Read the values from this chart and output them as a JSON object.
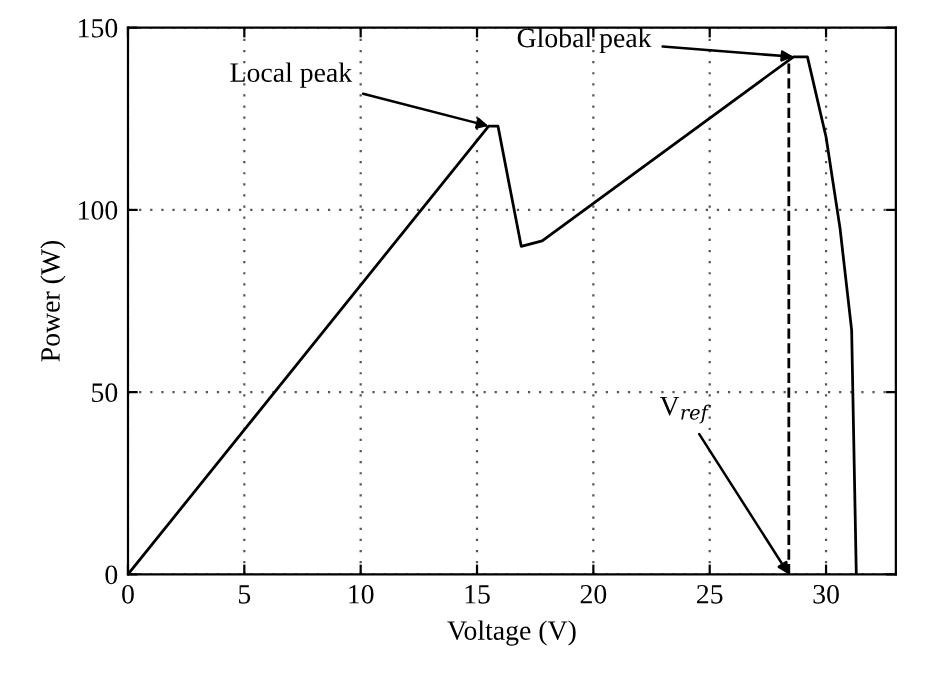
{
  "chart_data": {
    "type": "line",
    "xlabel": "Voltage (V)",
    "ylabel": "Power (W)",
    "xlim": [
      0,
      33
    ],
    "ylim": [
      0,
      150
    ],
    "xticks": [
      0,
      5,
      10,
      15,
      20,
      25,
      30
    ],
    "yticks": [
      0,
      50,
      100,
      150
    ],
    "grid": true,
    "series": [
      {
        "color": "#000000",
        "line_style": "solid",
        "x": [
          0,
          15.5,
          15.9,
          16.9,
          17.8,
          28.6,
          29.2,
          30.0,
          30.6,
          31.1,
          31.3
        ],
        "values": [
          0,
          123,
          123,
          90,
          91.5,
          142,
          142,
          120,
          95,
          67,
          0
        ]
      },
      {
        "color": "#000000",
        "line_style": "dashed",
        "x": [
          28.4,
          28.4
        ],
        "values": [
          0,
          142
        ]
      }
    ],
    "annotations": [
      {
        "text": "Local peak",
        "x": 15.5,
        "y": 123
      },
      {
        "text": "Global peak",
        "x": 28.6,
        "y": 142
      },
      {
        "text": "V$_{ref}$",
        "x": 28.4,
        "y": 0
      }
    ]
  }
}
